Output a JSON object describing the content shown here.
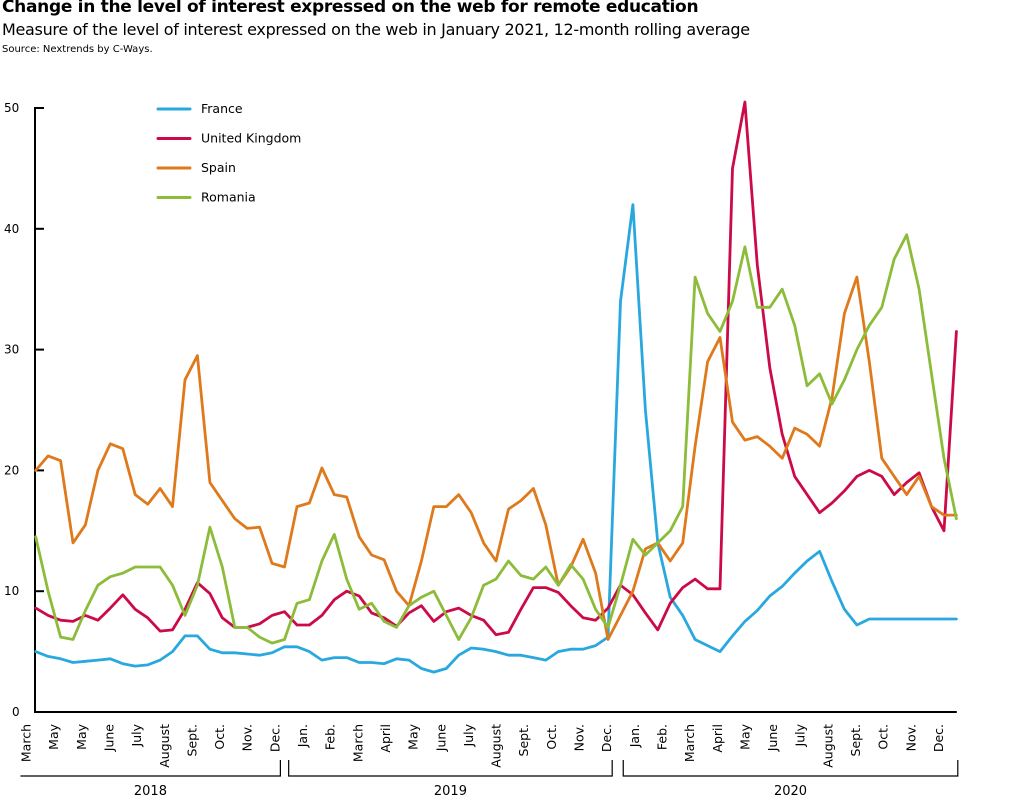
{
  "header": {
    "title": "Change in the level of interest expressed on the web for remote education",
    "subtitle": "Measure of the level of interest expressed on the web in January 2021, 12-month rolling average",
    "source": "Source: Nextrends by C-Ways."
  },
  "chart_data": {
    "type": "line",
    "title": "Change in the level of interest expressed on the web for remote education",
    "subtitle": "Measure of the level of interest expressed on the web in January 2021, 12-month rolling average",
    "xlabel": "",
    "ylabel": "",
    "ylim": [
      0,
      50
    ],
    "yticks": [
      0,
      10,
      20,
      30,
      40,
      50
    ],
    "x_unit": "months since March 2018",
    "xlim": [
      0.35,
      33.7
    ],
    "grid": false,
    "legend_position": "top-left",
    "month_ticks": [
      {
        "label": "March",
        "m": 0
      },
      {
        "label": "May",
        "m": 1
      },
      {
        "label": "May",
        "m": 2
      },
      {
        "label": "June",
        "m": 3
      },
      {
        "label": "July",
        "m": 4
      },
      {
        "label": "August",
        "m": 5
      },
      {
        "label": "Sept.",
        "m": 6
      },
      {
        "label": "Oct.",
        "m": 7
      },
      {
        "label": "Nov.",
        "m": 8
      },
      {
        "label": "Dec.",
        "m": 9
      },
      {
        "label": "Jan.",
        "m": 10
      },
      {
        "label": "Feb.",
        "m": 11
      },
      {
        "label": "March",
        "m": 12
      },
      {
        "label": "April",
        "m": 13
      },
      {
        "label": "May",
        "m": 14
      },
      {
        "label": "June",
        "m": 15
      },
      {
        "label": "July",
        "m": 16
      },
      {
        "label": "August",
        "m": 17
      },
      {
        "label": "Sept.",
        "m": 18
      },
      {
        "label": "Oct.",
        "m": 19
      },
      {
        "label": "Nov.",
        "m": 20
      },
      {
        "label": "Dec.",
        "m": 21
      },
      {
        "label": "Jan.",
        "m": 22
      },
      {
        "label": "Feb.",
        "m": 23
      },
      {
        "label": "March",
        "m": 24
      },
      {
        "label": "April",
        "m": 25
      },
      {
        "label": "May",
        "m": 26
      },
      {
        "label": "June",
        "m": 27
      },
      {
        "label": "July",
        "m": 28
      },
      {
        "label": "August",
        "m": 29
      },
      {
        "label": "Sept.",
        "m": 30
      },
      {
        "label": "Oct.",
        "m": 31
      },
      {
        "label": "Nov.",
        "m": 32
      },
      {
        "label": "Dec.",
        "m": 33
      }
    ],
    "years": [
      {
        "label": "2018",
        "from": -0.2,
        "to": 9.2
      },
      {
        "label": "2019",
        "from": 9.5,
        "to": 21.2
      },
      {
        "label": "2020",
        "from": 21.6,
        "to": 33.7
      }
    ],
    "x": [
      0.35,
      0.8,
      1.25,
      1.7,
      2.15,
      2.6,
      3.05,
      3.5,
      3.95,
      4.4,
      4.85,
      5.3,
      5.75,
      6.2,
      6.65,
      7.1,
      7.55,
      8.0,
      8.45,
      8.9,
      9.35,
      9.8,
      10.25,
      10.7,
      11.15,
      11.6,
      12.05,
      12.5,
      12.95,
      13.4,
      13.85,
      14.3,
      14.75,
      15.2,
      15.65,
      16.1,
      16.55,
      17.0,
      17.45,
      17.9,
      18.35,
      18.8,
      19.25,
      19.7,
      20.15,
      20.6,
      21.05,
      21.5,
      21.95,
      22.4,
      22.85,
      23.3,
      23.75,
      24.2,
      24.65,
      25.1,
      25.55,
      26.0,
      26.45,
      26.9,
      27.35,
      27.8,
      28.25,
      28.7,
      29.15,
      29.6,
      30.05,
      30.5,
      30.95,
      31.4,
      31.85,
      32.3,
      32.75,
      33.2,
      33.65
    ],
    "series": [
      {
        "name": "France",
        "color": "#29a8e0",
        "values": [
          5.0,
          4.6,
          4.4,
          4.1,
          4.2,
          4.3,
          4.4,
          4.0,
          3.8,
          3.9,
          4.3,
          5.0,
          6.3,
          6.3,
          5.2,
          4.9,
          4.9,
          4.8,
          4.7,
          4.9,
          5.4,
          5.4,
          5.0,
          4.3,
          4.5,
          4.5,
          4.1,
          4.1,
          4.0,
          4.4,
          4.3,
          3.6,
          3.3,
          3.6,
          4.7,
          5.3,
          5.2,
          5.0,
          4.7,
          4.7,
          4.5,
          4.3,
          5.0,
          5.2,
          5.2,
          5.5,
          6.2,
          34.0,
          42.0,
          25.0,
          14.0,
          9.5,
          8.0,
          6.0,
          5.5,
          5.0,
          6.3,
          7.5,
          8.4,
          9.6,
          10.4,
          11.5,
          12.5,
          13.3,
          10.8,
          8.5,
          7.2,
          7.7,
          7.7,
          7.7,
          7.7,
          7.7,
          7.7,
          7.7,
          7.7
        ]
      },
      {
        "name": "United Kingdom",
        "color": "#cc0a47",
        "values": [
          8.6,
          8.0,
          7.6,
          7.5,
          8.0,
          7.6,
          8.6,
          9.7,
          8.5,
          7.8,
          6.7,
          6.8,
          8.5,
          10.7,
          9.8,
          7.8,
          7.0,
          7.0,
          7.3,
          8.0,
          8.3,
          7.2,
          7.2,
          8.0,
          9.3,
          10.0,
          9.6,
          8.2,
          7.8,
          7.1,
          8.2,
          8.8,
          7.5,
          8.3,
          8.6,
          8.0,
          7.6,
          6.4,
          6.6,
          8.5,
          10.3,
          10.3,
          9.9,
          8.8,
          7.8,
          7.6,
          8.6,
          10.5,
          9.7,
          8.2,
          6.8,
          9.0,
          10.3,
          11.0,
          10.2,
          10.2,
          45.0,
          50.5,
          37.0,
          28.5,
          23.0,
          19.5,
          18.0,
          16.5,
          17.3,
          18.3,
          19.5,
          20.0,
          19.5,
          18.0,
          19.0,
          19.8,
          17.0,
          15.0,
          31.5
        ]
      },
      {
        "name": "Spain",
        "color": "#df7a1c",
        "values": [
          20.0,
          21.2,
          20.8,
          14.0,
          15.5,
          20.0,
          22.2,
          21.8,
          18.0,
          17.2,
          18.5,
          17.0,
          27.5,
          29.5,
          19.0,
          17.5,
          16.0,
          15.2,
          15.3,
          12.3,
          12.0,
          17.0,
          17.3,
          20.2,
          18.0,
          17.8,
          14.5,
          13.0,
          12.6,
          10.0,
          8.8,
          12.5,
          17.0,
          17.0,
          18.0,
          16.5,
          14.0,
          12.5,
          16.8,
          17.5,
          18.5,
          15.5,
          10.5,
          12.0,
          14.3,
          11.5,
          6.0,
          8.0,
          10.0,
          13.5,
          14.0,
          12.5,
          14.0,
          22.0,
          29.0,
          31.0,
          24.0,
          22.5,
          22.8,
          22.0,
          21.0,
          23.5,
          23.0,
          22.0,
          26.0,
          33.0,
          36.0,
          29.0,
          21.0,
          19.5,
          18.0,
          19.5,
          17.0,
          16.3,
          16.3
        ]
      },
      {
        "name": "Romania",
        "color": "#8cbc3a",
        "values": [
          14.5,
          10.0,
          6.2,
          6.0,
          8.4,
          10.5,
          11.2,
          11.5,
          12.0,
          12.0,
          12.0,
          10.5,
          8.0,
          10.5,
          15.3,
          12.0,
          7.0,
          7.0,
          6.2,
          5.7,
          6.0,
          9.0,
          9.3,
          12.5,
          14.7,
          11.0,
          8.5,
          9.0,
          7.5,
          7.0,
          8.8,
          9.5,
          10.0,
          8.0,
          6.0,
          7.8,
          10.5,
          11.0,
          12.5,
          11.3,
          11.0,
          12.0,
          10.5,
          12.2,
          11.0,
          8.5,
          7.0,
          10.5,
          14.3,
          13.0,
          14.0,
          15.0,
          17.0,
          36.0,
          33.0,
          31.5,
          34.0,
          38.5,
          33.5,
          33.5,
          35.0,
          32.0,
          27.0,
          28.0,
          25.5,
          27.5,
          30.0,
          32.0,
          33.5,
          37.5,
          39.5,
          35.0,
          28.0,
          21.0,
          16.0
        ]
      }
    ]
  },
  "legend": {
    "items": [
      {
        "label": "France",
        "color": "#29a8e0"
      },
      {
        "label": "United Kingdom",
        "color": "#cc0a47"
      },
      {
        "label": "Spain",
        "color": "#df7a1c"
      },
      {
        "label": "Romania",
        "color": "#8cbc3a"
      }
    ]
  }
}
